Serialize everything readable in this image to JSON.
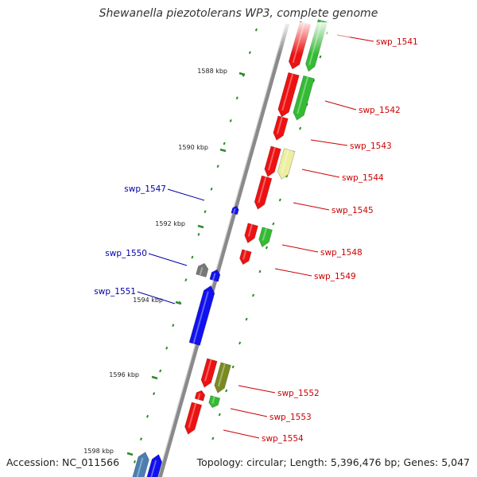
{
  "title": "Shewanella piezotolerans WP3, complete genome",
  "footer": {
    "accession": "Accession: NC_011566",
    "summary": "Topology: circular; Length: 5,396,476 bp; Genes: 5,047"
  },
  "colors": {
    "forward_cds": "#ee1111",
    "forward_alt": "#33bb33",
    "olive": "#7a8a20",
    "pale_yellow": "#eeeea0",
    "reverse_cds": "#1111ee",
    "gray_feature": "#777777",
    "steel_blue": "#4a7fb0",
    "forward_label": "#cc0000",
    "reverse_label": "#0000aa",
    "tick": "#2a8a2a",
    "backbone": "#8a8a8a"
  },
  "scale_labels": [
    "1588 kbp",
    "1590 kbp",
    "1592 kbp",
    "1594 kbp",
    "1596 kbp",
    "1598 kbp"
  ],
  "forward_genes": [
    "swp_1541",
    "swp_1542",
    "swp_1543",
    "swp_1544",
    "swp_1545",
    "swp_1548",
    "swp_1549",
    "swp_1552",
    "swp_1553",
    "swp_1554"
  ],
  "reverse_genes": [
    "swp_1547",
    "swp_1550",
    "swp_1551"
  ]
}
